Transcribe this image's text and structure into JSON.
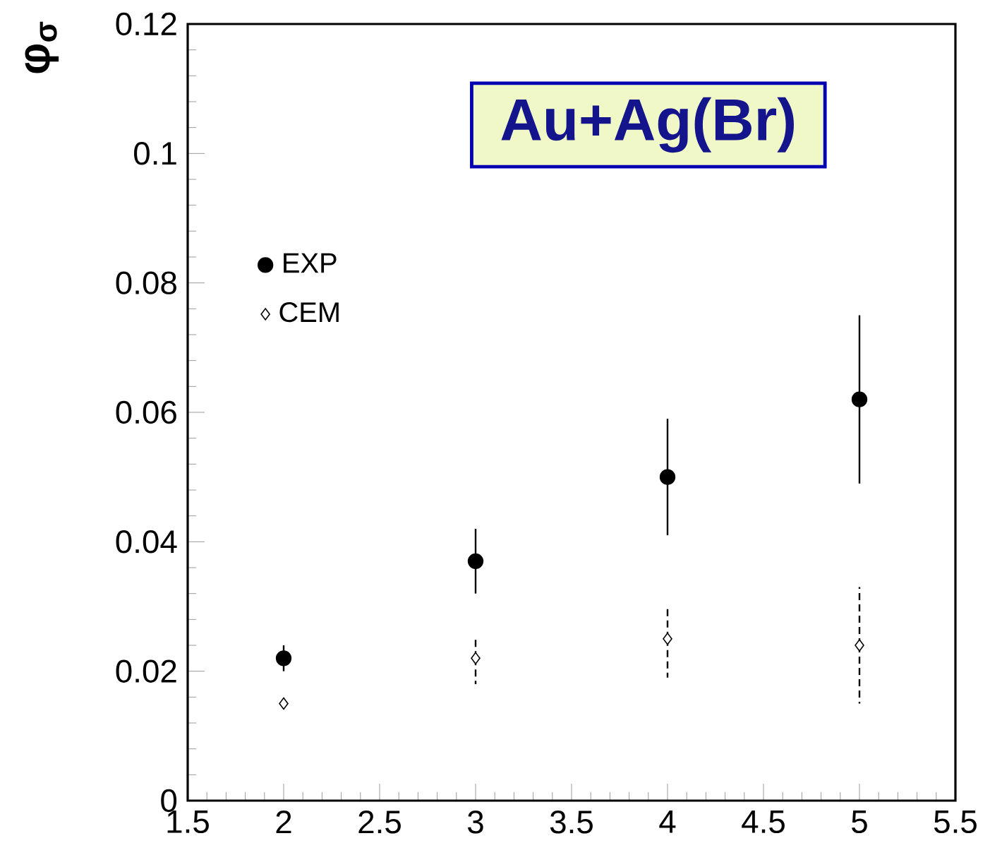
{
  "chart_data": {
    "type": "scatter",
    "title": "Au+Ag(Br)",
    "ylabel": "φ$_{σ}$",
    "xlim": [
      1.5,
      5.5
    ],
    "xticks": [
      {
        "value": 1.5,
        "label": "1.5"
      },
      2,
      2.5,
      3,
      3.5,
      4,
      4.5,
      5,
      5.5
    ],
    "ylim": [
      0,
      0.12
    ],
    "yticks": [
      0,
      0.02,
      0.04,
      0.06,
      0.08,
      0.1,
      0.12
    ],
    "legend": "top left",
    "grid": false,
    "series": [
      {
        "name": "EXP",
        "color": "#000000",
        "marker": "circle",
        "line_style": "solid",
        "x": [
          2,
          3,
          4,
          5
        ],
        "values": [
          0.022,
          0.037,
          0.05,
          0.062
        ],
        "errors": [
          [
            0.02,
            0.024
          ],
          [
            0.032,
            0.042
          ],
          [
            0.041,
            0.059
          ],
          [
            0.049,
            0.075
          ]
        ]
      },
      {
        "name": "CEM",
        "color": "#000000",
        "marker": "diamond",
        "line_style": "dashed",
        "x": [
          2,
          3,
          4,
          5
        ],
        "values": [
          0.015,
          0.022,
          0.025,
          0.024
        ],
        "errors": [
          null,
          [
            0.018,
            0.0255
          ],
          [
            0.019,
            0.03
          ],
          [
            0.015,
            0.033
          ]
        ]
      }
    ]
  }
}
